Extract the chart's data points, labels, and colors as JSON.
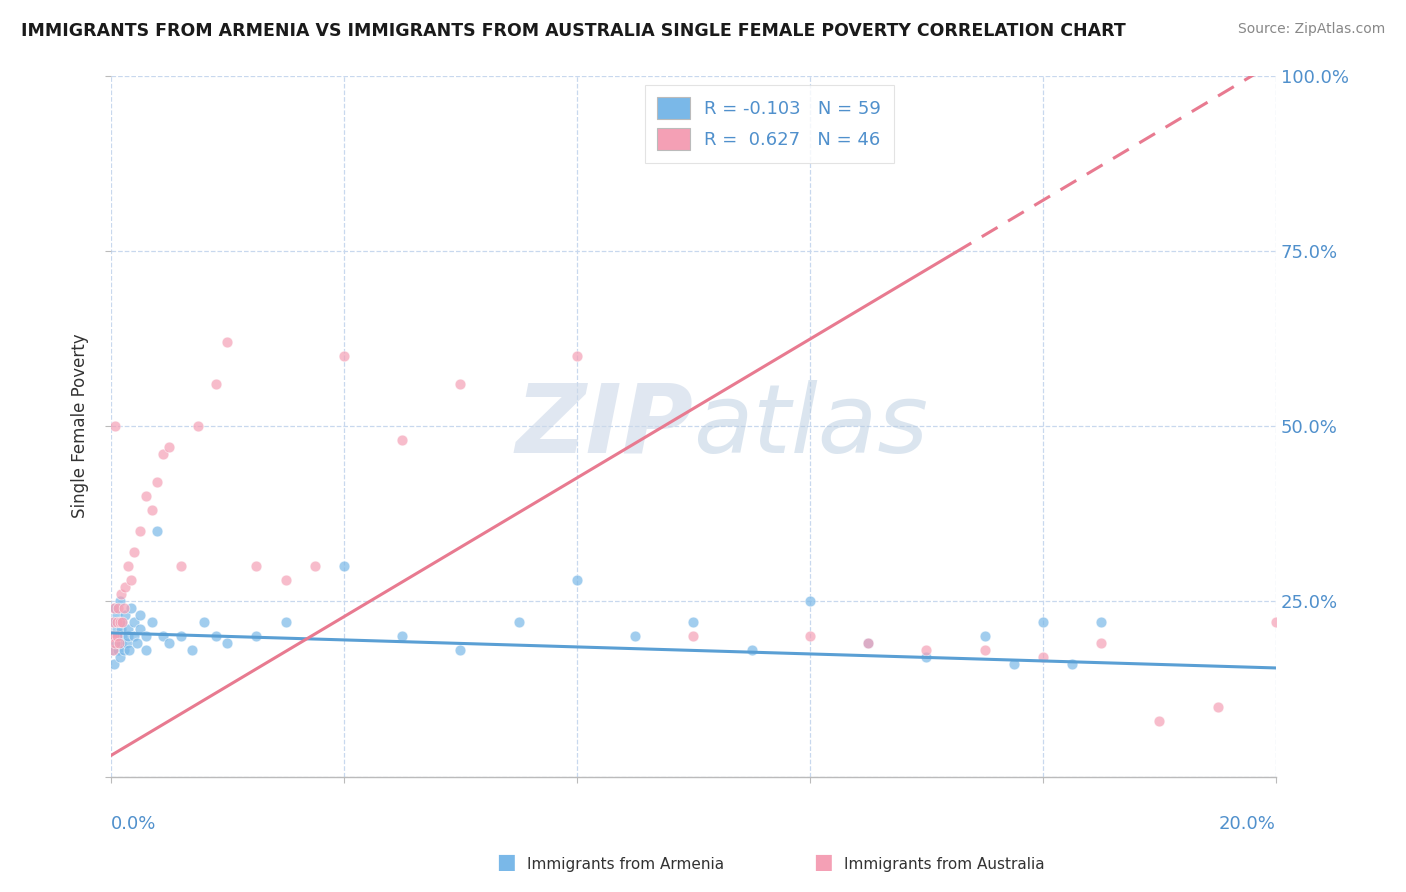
{
  "title": "IMMIGRANTS FROM ARMENIA VS IMMIGRANTS FROM AUSTRALIA SINGLE FEMALE POVERTY CORRELATION CHART",
  "source": "Source: ZipAtlas.com",
  "ylabel": "Single Female Poverty",
  "color_armenia": "#7ab8e8",
  "color_australia": "#f4a0b5",
  "color_armenia_line": "#5a9fd4",
  "color_australia_line": "#e87a90",
  "background": "#ffffff",
  "grid_color": "#c8d8ee",
  "xlim": [
    0.0,
    0.2
  ],
  "ylim": [
    0.0,
    1.0
  ],
  "watermark": "ZIPatlas",
  "watermark_color": "#ccd8e8",
  "armenia_scatter_x": [
    0.0002,
    0.0003,
    0.0005,
    0.0006,
    0.0007,
    0.0008,
    0.0009,
    0.001,
    0.001,
    0.0012,
    0.0013,
    0.0014,
    0.0015,
    0.0016,
    0.0017,
    0.0018,
    0.002,
    0.002,
    0.0022,
    0.0025,
    0.0028,
    0.003,
    0.003,
    0.0032,
    0.0035,
    0.004,
    0.004,
    0.0045,
    0.005,
    0.005,
    0.006,
    0.006,
    0.007,
    0.008,
    0.009,
    0.01,
    0.012,
    0.014,
    0.016,
    0.018,
    0.02,
    0.025,
    0.03,
    0.04,
    0.05,
    0.06,
    0.07,
    0.08,
    0.09,
    0.1,
    0.11,
    0.12,
    0.13,
    0.14,
    0.15,
    0.155,
    0.16,
    0.165,
    0.17
  ],
  "armenia_scatter_y": [
    0.2,
    0.18,
    0.22,
    0.16,
    0.24,
    0.2,
    0.19,
    0.21,
    0.23,
    0.18,
    0.2,
    0.22,
    0.17,
    0.25,
    0.19,
    0.21,
    0.2,
    0.22,
    0.18,
    0.23,
    0.19,
    0.2,
    0.21,
    0.18,
    0.24,
    0.2,
    0.22,
    0.19,
    0.21,
    0.23,
    0.2,
    0.18,
    0.22,
    0.35,
    0.2,
    0.19,
    0.2,
    0.18,
    0.22,
    0.2,
    0.19,
    0.2,
    0.22,
    0.3,
    0.2,
    0.18,
    0.22,
    0.28,
    0.2,
    0.22,
    0.18,
    0.25,
    0.19,
    0.17,
    0.2,
    0.16,
    0.22,
    0.16,
    0.22
  ],
  "australia_scatter_x": [
    0.0002,
    0.0003,
    0.0004,
    0.0005,
    0.0006,
    0.0007,
    0.0008,
    0.001,
    0.001,
    0.0012,
    0.0014,
    0.0016,
    0.0018,
    0.002,
    0.0022,
    0.0025,
    0.003,
    0.0035,
    0.004,
    0.005,
    0.006,
    0.007,
    0.008,
    0.009,
    0.01,
    0.012,
    0.015,
    0.018,
    0.02,
    0.025,
    0.03,
    0.035,
    0.04,
    0.05,
    0.06,
    0.08,
    0.1,
    0.12,
    0.13,
    0.14,
    0.15,
    0.16,
    0.17,
    0.18,
    0.19,
    0.2
  ],
  "australia_scatter_y": [
    0.2,
    0.22,
    0.18,
    0.24,
    0.2,
    0.5,
    0.19,
    0.22,
    0.2,
    0.24,
    0.19,
    0.22,
    0.26,
    0.22,
    0.24,
    0.27,
    0.3,
    0.28,
    0.32,
    0.35,
    0.4,
    0.38,
    0.42,
    0.46,
    0.47,
    0.3,
    0.5,
    0.56,
    0.62,
    0.3,
    0.28,
    0.3,
    0.6,
    0.48,
    0.56,
    0.6,
    0.2,
    0.2,
    0.19,
    0.18,
    0.18,
    0.17,
    0.19,
    0.08,
    0.1,
    0.22
  ],
  "aus_line_x0": 0.0,
  "aus_line_y0": 0.03,
  "aus_line_x1": 0.2,
  "aus_line_y1": 1.02,
  "arm_line_x0": 0.0,
  "arm_line_y0": 0.205,
  "arm_line_x1": 0.2,
  "arm_line_y1": 0.155
}
